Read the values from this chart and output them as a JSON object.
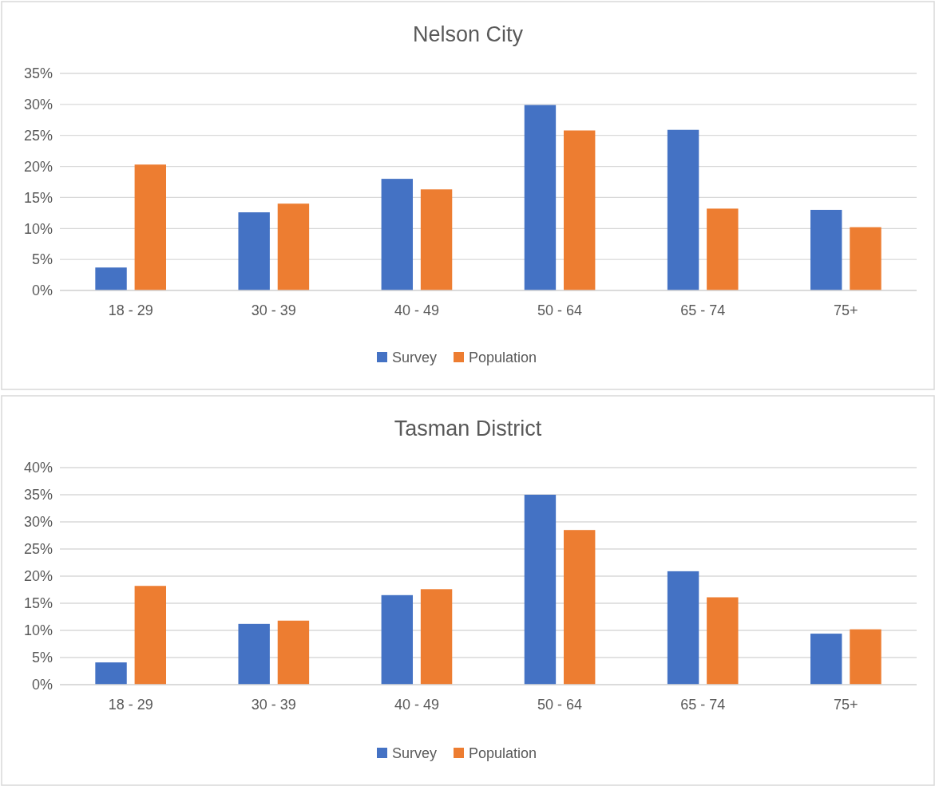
{
  "chart_data": [
    {
      "type": "bar",
      "title": "Nelson City",
      "categories": [
        "18 - 29",
        "30 - 39",
        "40 - 49",
        "50 - 64",
        "65 - 74",
        "75+"
      ],
      "series": [
        {
          "name": "Survey",
          "color": "#4472c4",
          "values": [
            3.7,
            12.6,
            18.0,
            29.9,
            25.9,
            13.0
          ]
        },
        {
          "name": "Population",
          "color": "#ed7d31",
          "values": [
            20.3,
            14.0,
            16.3,
            25.8,
            13.2,
            10.2
          ]
        }
      ],
      "ylim": [
        0,
        35
      ],
      "yticks": [
        {
          "value": 0,
          "label": "0%"
        },
        {
          "value": 5,
          "label": "5%"
        },
        {
          "value": 10,
          "label": "10%"
        },
        {
          "value": 15,
          "label": "15%"
        },
        {
          "value": 20,
          "label": "20%"
        },
        {
          "value": 25,
          "label": "25%"
        },
        {
          "value": 30,
          "label": "30%"
        },
        {
          "value": 35,
          "label": "35%"
        }
      ],
      "grid": "y",
      "legend": "bottom"
    },
    {
      "type": "bar",
      "title": "Tasman District",
      "categories": [
        "18 - 29",
        "30 - 39",
        "40 - 49",
        "50 - 64",
        "65 - 74",
        "75+"
      ],
      "series": [
        {
          "name": "Survey",
          "color": "#4472c4",
          "values": [
            4.1,
            11.2,
            16.5,
            35.0,
            20.9,
            9.4
          ]
        },
        {
          "name": "Population",
          "color": "#ed7d31",
          "values": [
            18.2,
            11.8,
            17.6,
            28.5,
            16.1,
            10.2
          ]
        }
      ],
      "ylim": [
        0,
        40
      ],
      "yticks": [
        {
          "value": 0,
          "label": "0%"
        },
        {
          "value": 5,
          "label": "5%"
        },
        {
          "value": 10,
          "label": "10%"
        },
        {
          "value": 15,
          "label": "15%"
        },
        {
          "value": 20,
          "label": "20%"
        },
        {
          "value": 25,
          "label": "25%"
        },
        {
          "value": 30,
          "label": "30%"
        },
        {
          "value": 35,
          "label": "35%"
        },
        {
          "value": 40,
          "label": "40%"
        }
      ],
      "grid": "y",
      "legend": "bottom"
    }
  ]
}
